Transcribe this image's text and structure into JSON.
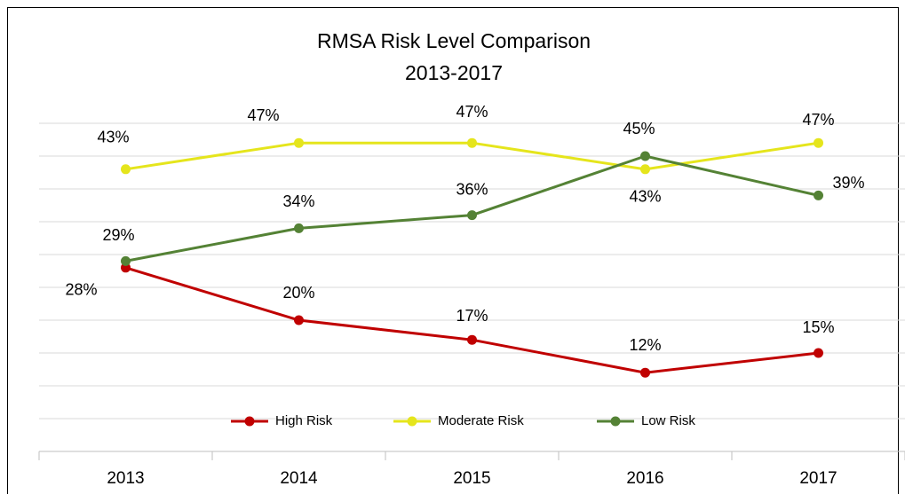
{
  "chart_data": {
    "type": "line",
    "title": "RMSA Risk Level Comparison",
    "subtitle": "2013-2017",
    "categories": [
      "2013",
      "2014",
      "2015",
      "2016",
      "2017"
    ],
    "series": [
      {
        "name": "High Risk",
        "color": "#c00000",
        "values": [
          28,
          20,
          17,
          12,
          15
        ],
        "value_labels": [
          "28%",
          "20%",
          "17%",
          "12%",
          "15%"
        ]
      },
      {
        "name": "Moderate Risk",
        "color": "#e5e51c",
        "values": [
          43,
          47,
          47,
          43,
          47
        ],
        "value_labels": [
          "43%",
          "47%",
          "47%",
          "43%",
          "47%"
        ]
      },
      {
        "name": "Low Risk",
        "color": "#548235",
        "values": [
          29,
          34,
          36,
          45,
          39
        ],
        "value_labels": [
          "29%",
          "34%",
          "36%",
          "45%",
          "39%"
        ]
      }
    ],
    "ylim": [
      0,
      55
    ],
    "yticks": [
      0,
      5,
      10,
      15,
      20,
      25,
      30,
      35,
      40,
      45,
      50
    ],
    "grid": true,
    "legend": "bottom"
  }
}
